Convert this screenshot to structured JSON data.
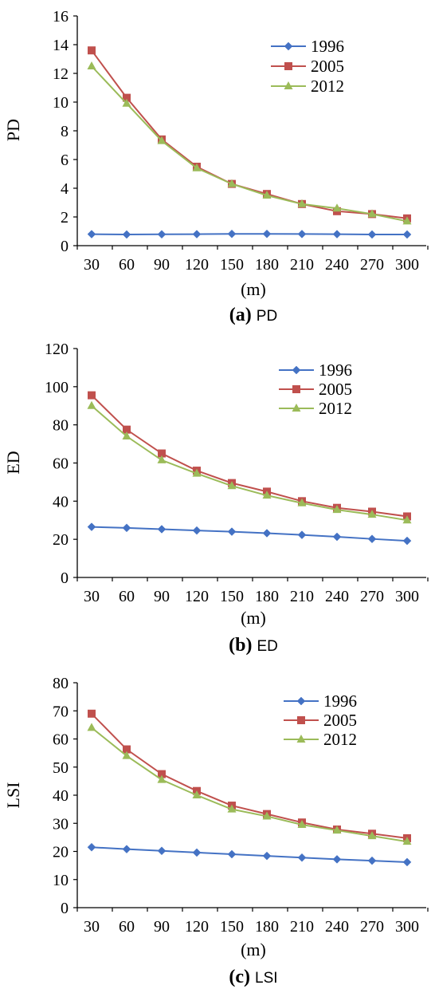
{
  "colors": {
    "1996": "#4472c4",
    "2005": "#c0504d",
    "2012": "#9bbb59"
  },
  "chart_data": [
    {
      "type": "line",
      "caption_letter": "(a)",
      "caption_name": "PD",
      "ylabel": "PD",
      "xlabel": "(m)",
      "categories": [
        "30",
        "60",
        "90",
        "120",
        "150",
        "180",
        "210",
        "240",
        "270",
        "300"
      ],
      "ylim": [
        0,
        16
      ],
      "yticks": [
        "0",
        "2",
        "4",
        "6",
        "8",
        "10",
        "12",
        "14",
        "16"
      ],
      "legend_position": "top-right",
      "series": [
        {
          "name": "1996",
          "marker": "diamond",
          "values": [
            0.8,
            0.78,
            0.79,
            0.8,
            0.82,
            0.82,
            0.81,
            0.8,
            0.78,
            0.78
          ]
        },
        {
          "name": "2005",
          "marker": "square",
          "values": [
            13.6,
            10.3,
            7.4,
            5.5,
            4.3,
            3.6,
            2.9,
            2.4,
            2.2,
            1.9
          ]
        },
        {
          "name": "2012",
          "marker": "triangle",
          "values": [
            12.5,
            9.9,
            7.3,
            5.4,
            4.3,
            3.5,
            2.9,
            2.6,
            2.2,
            1.7
          ]
        }
      ]
    },
    {
      "type": "line",
      "caption_letter": "(b)",
      "caption_name": "ED",
      "ylabel": "ED",
      "xlabel": "(m)",
      "categories": [
        "30",
        "60",
        "90",
        "120",
        "150",
        "180",
        "210",
        "240",
        "270",
        "300"
      ],
      "ylim": [
        0,
        120
      ],
      "yticks": [
        "0",
        "20",
        "40",
        "60",
        "80",
        "100",
        "120"
      ],
      "legend_position": "top-right",
      "series": [
        {
          "name": "1996",
          "marker": "diamond",
          "values": [
            26.5,
            26.0,
            25.3,
            24.6,
            24.0,
            23.2,
            22.3,
            21.3,
            20.2,
            19.2
          ]
        },
        {
          "name": "2005",
          "marker": "square",
          "values": [
            95.5,
            77.5,
            65.0,
            56.0,
            49.5,
            45.0,
            40.0,
            36.5,
            34.5,
            32.0
          ]
        },
        {
          "name": "2012",
          "marker": "triangle",
          "values": [
            90.0,
            74.0,
            61.5,
            54.5,
            48.0,
            43.0,
            39.0,
            35.5,
            33.0,
            30.0
          ]
        }
      ]
    },
    {
      "type": "line",
      "caption_letter": "(c)",
      "caption_name": "LSI",
      "ylabel": "LSI",
      "xlabel": "(m)",
      "categories": [
        "30",
        "60",
        "90",
        "120",
        "150",
        "180",
        "210",
        "240",
        "270",
        "300"
      ],
      "ylim": [
        0,
        80
      ],
      "yticks": [
        "0",
        "10",
        "20",
        "30",
        "40",
        "50",
        "60",
        "70",
        "80"
      ],
      "legend_position": "top-right",
      "series": [
        {
          "name": "1996",
          "marker": "diamond",
          "values": [
            21.5,
            20.8,
            20.2,
            19.6,
            19.0,
            18.4,
            17.8,
            17.2,
            16.7,
            16.2
          ]
        },
        {
          "name": "2005",
          "marker": "square",
          "values": [
            69.0,
            56.3,
            47.5,
            41.5,
            36.3,
            33.3,
            30.3,
            27.8,
            26.3,
            24.7
          ]
        },
        {
          "name": "2012",
          "marker": "triangle",
          "values": [
            64.0,
            54.0,
            45.5,
            40.0,
            35.0,
            32.5,
            29.5,
            27.5,
            25.5,
            23.5
          ]
        }
      ]
    }
  ]
}
